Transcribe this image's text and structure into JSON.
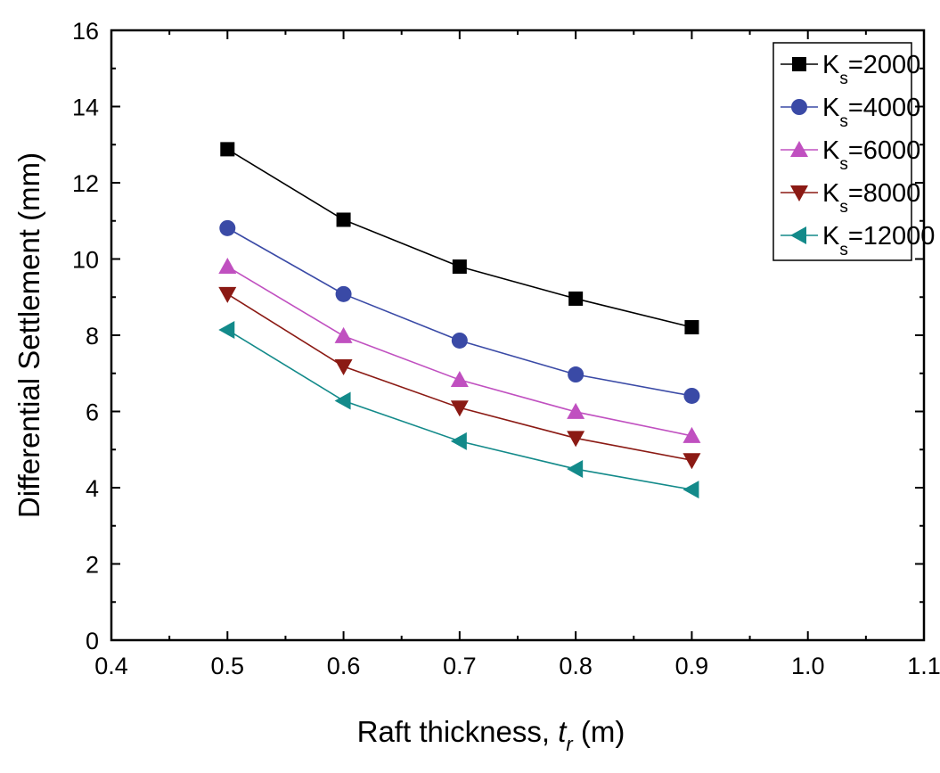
{
  "chart_data": {
    "type": "line",
    "title": "",
    "xlabel": {
      "main": "Raft thickness, ",
      "italic": "t",
      "sub": "r",
      "unit": " (m)"
    },
    "ylabel": "Differential Settlement (mm)",
    "xlim": [
      0.4,
      1.1
    ],
    "ylim": [
      0,
      16
    ],
    "xticks": [
      "0.4",
      "0.5",
      "0.6",
      "0.7",
      "0.8",
      "0.9",
      "1.0",
      "1.1"
    ],
    "yticks": [
      "0",
      "2",
      "4",
      "6",
      "8",
      "10",
      "12",
      "14",
      "16"
    ],
    "grid": false,
    "legend_position": "top-right",
    "x": [
      0.5,
      0.6,
      0.7,
      0.8,
      0.9
    ],
    "series": [
      {
        "name": "K_s=2000",
        "label_main": "K",
        "label_sub": "s",
        "label_rest": "=2000",
        "color": "#000000",
        "marker": "square",
        "values": [
          12.88,
          11.03,
          9.8,
          8.96,
          8.21
        ]
      },
      {
        "name": "K_s=4000",
        "label_main": "K",
        "label_sub": "s",
        "label_rest": "=4000",
        "color": "#3a4aa6",
        "marker": "circle",
        "values": [
          10.81,
          9.08,
          7.86,
          6.97,
          6.41
        ]
      },
      {
        "name": "K_s=6000",
        "label_main": "K",
        "label_sub": "s",
        "label_rest": "=6000",
        "color": "#c050c0",
        "marker": "triangle-up",
        "values": [
          9.8,
          7.98,
          6.83,
          5.99,
          5.36
        ]
      },
      {
        "name": "K_s=8000",
        "label_main": "K",
        "label_sub": "s",
        "label_rest": "=8000",
        "color": "#8b1a14",
        "marker": "triangle-down",
        "values": [
          9.08,
          7.18,
          6.1,
          5.3,
          4.72
        ]
      },
      {
        "name": "K_s=12000",
        "label_main": "K",
        "label_sub": "s",
        "label_rest": "=12000",
        "color": "#138a8a",
        "marker": "triangle-left",
        "values": [
          8.14,
          6.28,
          5.22,
          4.49,
          3.95
        ]
      }
    ]
  }
}
